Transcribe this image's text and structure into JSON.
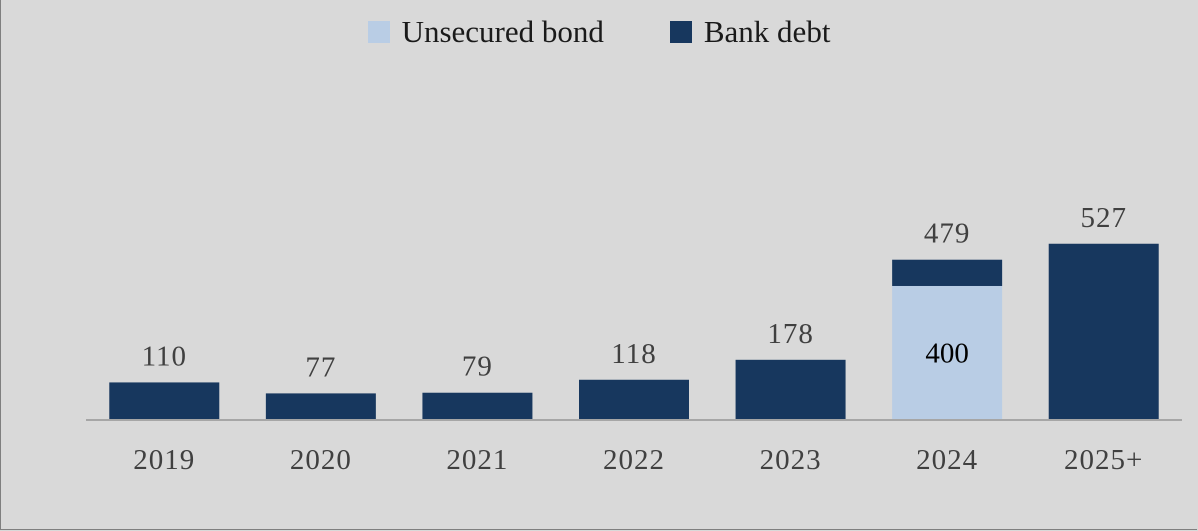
{
  "chart_data": {
    "type": "bar",
    "stacked": true,
    "categories": [
      "2019",
      "2020",
      "2021",
      "2022",
      "2023",
      "2024",
      "2025+"
    ],
    "series": [
      {
        "name": "Unsecured bond",
        "color": "#b9cde5",
        "values": [
          0,
          0,
          0,
          0,
          0,
          400,
          0
        ]
      },
      {
        "name": "Bank debt",
        "color": "#17375e",
        "values": [
          110,
          77,
          79,
          118,
          178,
          79,
          527
        ]
      }
    ],
    "totals": [
      "110",
      "77",
      "79",
      "118",
      "178",
      "479",
      "527"
    ],
    "inner_labels": [
      "",
      "",
      "",
      "",
      "",
      "400",
      ""
    ],
    "title": "",
    "xlabel": "",
    "ylabel": "",
    "ylim": [
      0,
      1260
    ],
    "legend_position": "top-center",
    "grid": false
  }
}
